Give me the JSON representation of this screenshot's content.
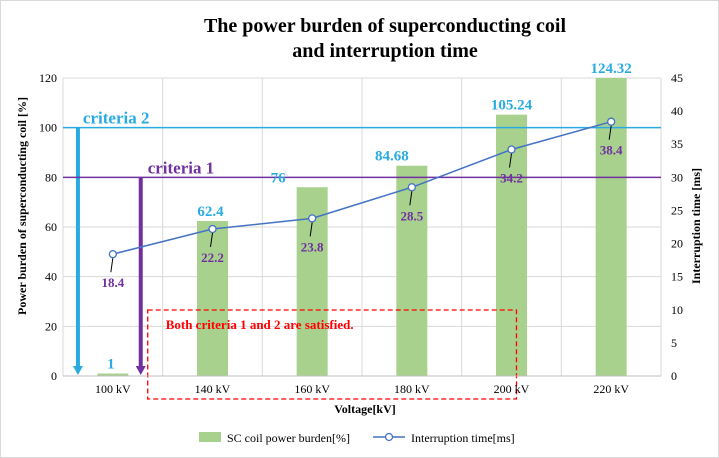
{
  "chart_data": {
    "type": "bar",
    "title_line1": "The power burden of superconducting coil",
    "title_line2": "and interruption time",
    "xlabel": "Voltage[kV]",
    "ylabel_left": "Power burden of superconducting  coil [%]",
    "ylabel_right": "Interruption time [ms]",
    "categories": [
      "100 kV",
      "140 kV",
      "160 kV",
      "180 kV",
      "200 kV",
      "220 kV"
    ],
    "left_axis": {
      "min": 0,
      "max": 120,
      "ticks": [
        "0",
        "20",
        "40",
        "60",
        "80",
        "100",
        "120"
      ]
    },
    "right_axis": {
      "min": 0,
      "max": 45,
      "ticks": [
        "0",
        "5",
        "10",
        "15",
        "20",
        "25",
        "30",
        "35",
        "40",
        "45"
      ]
    },
    "grid": true,
    "legend_position": "bottom",
    "series": [
      {
        "name": "SC coil power burden[%]",
        "type": "bar",
        "axis": "left",
        "color": "#a9d18e",
        "label_color": "#29abe2",
        "values": [
          1,
          62.4,
          76,
          84.68,
          105.24,
          124.32
        ],
        "labels": [
          "1",
          "62.4",
          "76",
          "84.68",
          "105.24",
          "124.32"
        ]
      },
      {
        "name": "Interruption time[ms]",
        "type": "line",
        "axis": "right",
        "color": "#4472c4",
        "label_color": "#7030a0",
        "values": [
          18.4,
          22.2,
          23.8,
          28.5,
          34.2,
          38.4
        ],
        "labels": [
          "18.4",
          "22.2",
          "23.8",
          "28.5",
          "34.2",
          "38.4"
        ]
      }
    ],
    "reference_lines": [
      {
        "label": "criteria 2",
        "value": 100,
        "axis": "left",
        "color": "#29abe2"
      },
      {
        "label": "criteria 1",
        "value": 80,
        "axis": "left",
        "color": "#7030a0"
      }
    ],
    "annotation": {
      "text": "Both criteria 1 and  2 are satisfied.",
      "color": "#ff0000"
    }
  }
}
